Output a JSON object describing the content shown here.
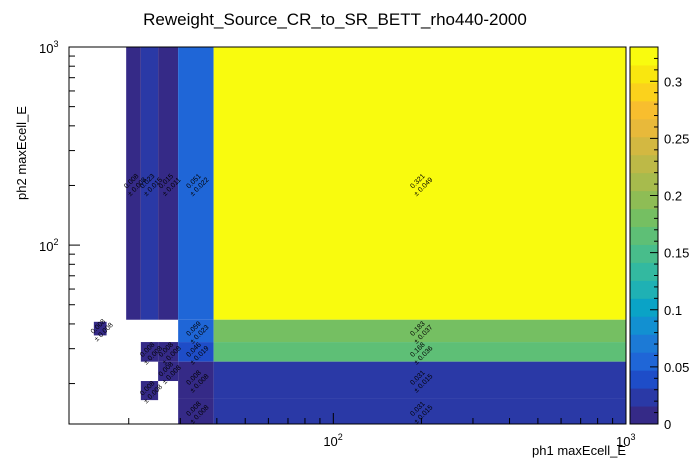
{
  "chart_data": {
    "type": "heatmap",
    "title": "Reweight_Source_CR_to_SR_BETT_rho440-2000",
    "xlabel": "ph1 maxEcell_E",
    "ylabel": "ph2 maxEcell_E",
    "x_scale": "log",
    "y_scale": "log",
    "xlim": [
      12.5,
      1000
    ],
    "ylim": [
      12.5,
      1000
    ],
    "x_tick_labels": [
      {
        "value": 100,
        "base": "10",
        "exp": "2"
      },
      {
        "value": 1000,
        "base": "10",
        "exp": "3"
      }
    ],
    "y_tick_labels": [
      {
        "value": 100,
        "base": "10",
        "exp": "2"
      },
      {
        "value": 1000,
        "base": "10",
        "exp": "3"
      }
    ],
    "zlim": [
      0,
      0.33
    ],
    "colorbar_ticks": [
      "0",
      "0.05",
      "0.1",
      "0.15",
      "0.2",
      "0.25",
      "0.3"
    ],
    "colorbar_tick_values": [
      0,
      0.05,
      0.1,
      0.15,
      0.2,
      0.25,
      0.3
    ],
    "palette": [
      "#352a87",
      "#2a39a6",
      "#1e4dc8",
      "#1f66d7",
      "#1c7ad6",
      "#1290d1",
      "#0aa3c6",
      "#1fb1b4",
      "#33b9a0",
      "#48bd8b",
      "#5ebf76",
      "#75bf62",
      "#8ebd55",
      "#a7bb4d",
      "#bdb947",
      "#d3b841",
      "#e8b93a",
      "#f8be2e",
      "#fbd21c",
      "#f9e70f",
      "#f9fb0e"
    ],
    "cells": [
      {
        "x0": 19.6,
        "x1": 22.0,
        "y0": 42,
        "y1": 1000,
        "value": 0.008,
        "error": 0.008
      },
      {
        "x0": 22.0,
        "x1": 25.2,
        "y0": 42,
        "y1": 1000,
        "value": 0.023,
        "error": 0.015
      },
      {
        "x0": 25.2,
        "x1": 29.5,
        "y0": 42,
        "y1": 1000,
        "value": 0.015,
        "error": 0.011
      },
      {
        "x0": 29.5,
        "x1": 39.0,
        "y0": 42,
        "y1": 1000,
        "value": 0.051,
        "error": 0.022
      },
      {
        "x0": 39.0,
        "x1": 1000,
        "y0": 42,
        "y1": 1000,
        "value": 0.321,
        "error": 0.049
      },
      {
        "x0": 15.2,
        "x1": 16.8,
        "y0": 35.0,
        "y1": 41.0,
        "value": 0.008,
        "error": 0.008
      },
      {
        "x0": 29.5,
        "x1": 39.0,
        "y0": 32.4,
        "y1": 42,
        "value": 0.059,
        "error": 0.023
      },
      {
        "x0": 39.0,
        "x1": 1000,
        "y0": 32.4,
        "y1": 42,
        "value": 0.183,
        "error": 0.037
      },
      {
        "x0": 22.0,
        "x1": 25.2,
        "y0": 25.8,
        "y1": 32.4,
        "value": 0.008,
        "error": 0.008
      },
      {
        "x0": 25.2,
        "x1": 29.5,
        "y0": 25.8,
        "y1": 32.4,
        "value": 0.008,
        "error": 0.008
      },
      {
        "x0": 29.5,
        "x1": 39.0,
        "y0": 25.8,
        "y1": 32.4,
        "value": 0.046,
        "error": 0.019
      },
      {
        "x0": 39.0,
        "x1": 1000,
        "y0": 25.8,
        "y1": 32.4,
        "value": 0.168,
        "error": 0.036
      },
      {
        "x0": 22.0,
        "x1": 25.2,
        "y0": 16.5,
        "y1": 20.6,
        "value": 0.008,
        "error": 0.008
      },
      {
        "x0": 25.2,
        "x1": 29.5,
        "y0": 20.6,
        "y1": 25.8,
        "value": 0.008,
        "error": 0.008
      },
      {
        "x0": 29.5,
        "x1": 39.0,
        "y0": 16.9,
        "y1": 25.8,
        "value": 0.008,
        "error": 0.008
      },
      {
        "x0": 39.0,
        "x1": 1000,
        "y0": 16.9,
        "y1": 25.8,
        "value": 0.031,
        "error": 0.015
      },
      {
        "x0": 29.5,
        "x1": 39.0,
        "y0": 12.5,
        "y1": 16.9,
        "value": 0.008,
        "error": 0.008
      },
      {
        "x0": 39.0,
        "x1": 1000,
        "y0": 12.5,
        "y1": 16.9,
        "value": 0.031,
        "error": 0.015
      }
    ]
  }
}
